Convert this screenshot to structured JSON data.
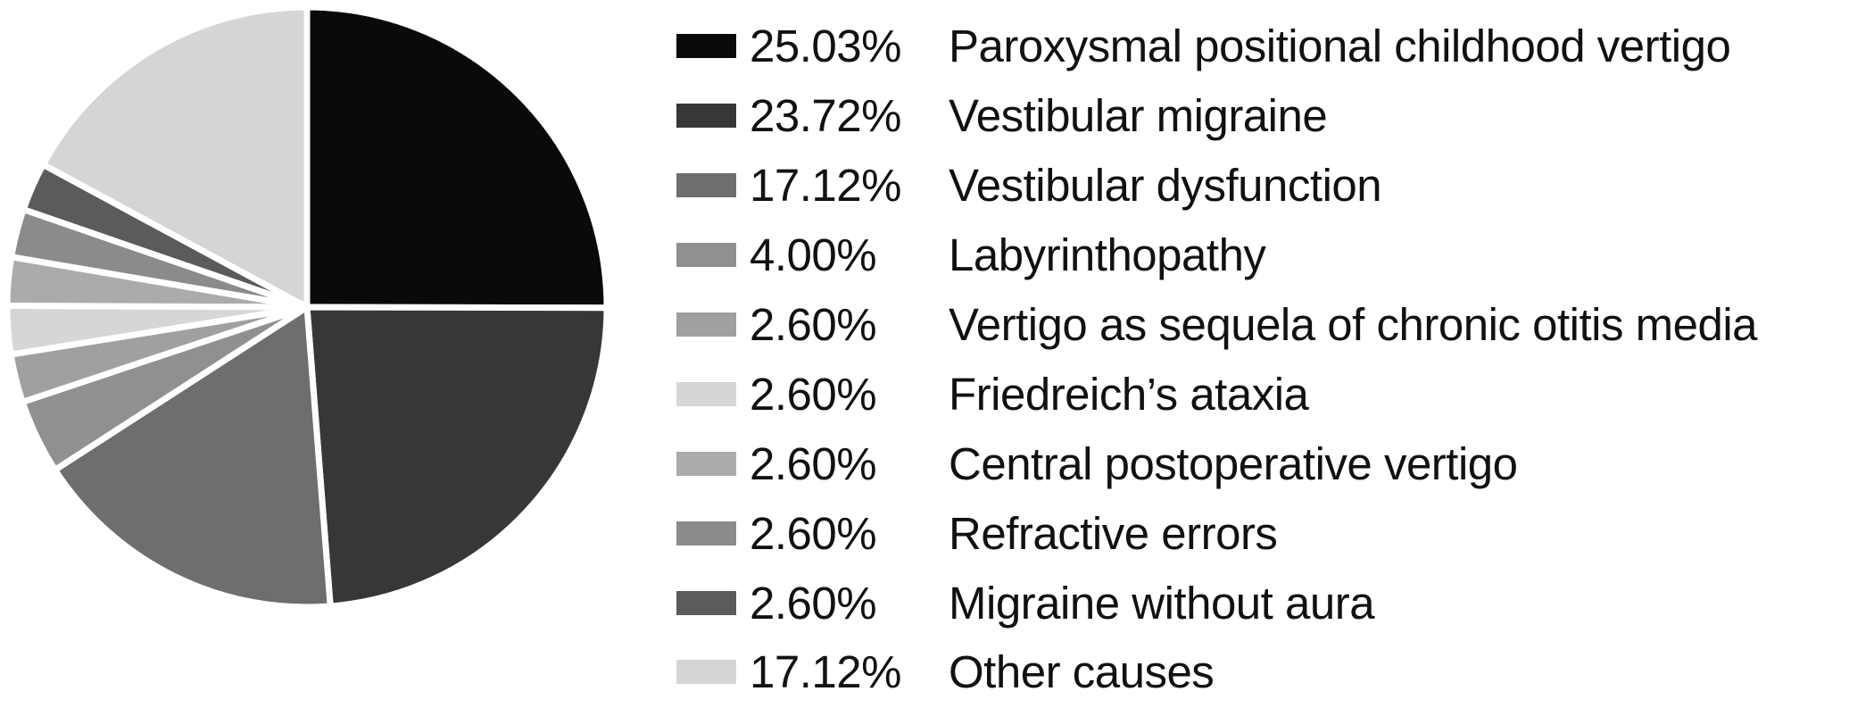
{
  "figure": {
    "background": "#ffffff",
    "text_color": "#111111",
    "wedge_gap_color": "#ffffff"
  },
  "chart_data": {
    "type": "pie",
    "title": "",
    "legend_position": "right",
    "start_angle": "12-o'clock, clockwise",
    "slices": [
      {
        "label": "Paroxysmal positional childhood vertigo",
        "value": 25.03,
        "percent_label": "25.03%",
        "color": "#0a0a0a"
      },
      {
        "label": "Vestibular migraine",
        "value": 23.72,
        "percent_label": "23.72%",
        "color": "#373737"
      },
      {
        "label": "Vestibular dysfunction",
        "value": 17.12,
        "percent_label": "17.12%",
        "color": "#6e6e6e"
      },
      {
        "label": "Labyrinthopathy",
        "value": 4.0,
        "percent_label": "4.00%",
        "color": "#909090"
      },
      {
        "label": "Vertigo as sequela of chronic otitis media",
        "value": 2.6,
        "percent_label": "2.60%",
        "color": "#a0a0a2"
      },
      {
        "label": "Friedreich’s ataxia",
        "value": 2.6,
        "percent_label": "2.60%",
        "color": "#d6d6d6"
      },
      {
        "label": "Central postoperative vertigo",
        "value": 2.6,
        "percent_label": "2.60%",
        "color": "#ababad"
      },
      {
        "label": "Refractive errors",
        "value": 2.6,
        "percent_label": "2.60%",
        "color": "#8b8b8b"
      },
      {
        "label": "Migraine without aura",
        "value": 2.6,
        "percent_label": "2.60%",
        "color": "#5b5b5b"
      },
      {
        "label": "Other causes",
        "value": 17.12,
        "percent_label": "17.12%",
        "color": "#d5d5d5"
      }
    ]
  }
}
